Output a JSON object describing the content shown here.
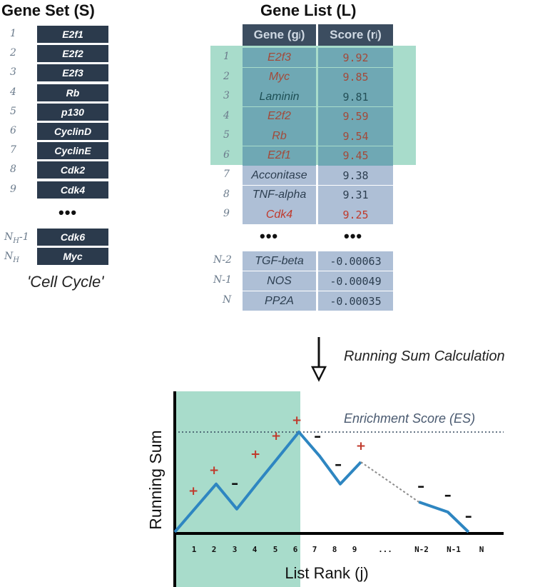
{
  "gene_set": {
    "title": "Gene Set (S)",
    "rows": [
      {
        "idx": "1",
        "gene": "E2f1"
      },
      {
        "idx": "2",
        "gene": "E2f2"
      },
      {
        "idx": "3",
        "gene": "E2f3"
      },
      {
        "idx": "4",
        "gene": "Rb"
      },
      {
        "idx": "5",
        "gene": "p130"
      },
      {
        "idx": "6",
        "gene": "CyclinD"
      },
      {
        "idx": "7",
        "gene": "CyclinE"
      },
      {
        "idx": "8",
        "gene": "Cdk2"
      },
      {
        "idx": "9",
        "gene": "Cdk4"
      }
    ],
    "ellipsis": "•••",
    "tail": [
      {
        "idx_main": "N",
        "idx_sub": "H",
        "idx_suffix": "-1",
        "gene": "Cdk6"
      },
      {
        "idx_main": "N",
        "idx_sub": "H",
        "idx_suffix": "",
        "gene": "Myc"
      }
    ],
    "caption": "'Cell Cycle'"
  },
  "gene_list": {
    "title": "Gene List (L)",
    "header_gene_main": "Gene (g",
    "header_gene_sub": "j",
    "header_gene_end": " )",
    "header_score_main": "Score (r",
    "header_score_sub": "j",
    "header_score_end": ")",
    "rows": [
      {
        "idx": "1",
        "gene": "E2f3",
        "score": "9.92",
        "in_set": true,
        "leading": true
      },
      {
        "idx": "2",
        "gene": "Myc",
        "score": "9.85",
        "in_set": true,
        "leading": true
      },
      {
        "idx": "3",
        "gene": "Laminin",
        "score": "9.81",
        "in_set": false,
        "leading": true
      },
      {
        "idx": "4",
        "gene": "E2f2",
        "score": "9.59",
        "in_set": true,
        "leading": true
      },
      {
        "idx": "5",
        "gene": "Rb",
        "score": "9.54",
        "in_set": true,
        "leading": true
      },
      {
        "idx": "6",
        "gene": "E2f1",
        "score": "9.45",
        "in_set": true,
        "leading": true
      },
      {
        "idx": "7",
        "gene": "Acconitase",
        "score": "9.38",
        "in_set": false,
        "leading": false
      },
      {
        "idx": "8",
        "gene": "TNF-alpha",
        "score": "9.31",
        "in_set": false,
        "leading": false
      },
      {
        "idx": "9",
        "gene": "Cdk4",
        "score": "9.25",
        "in_set": true,
        "leading": false
      }
    ],
    "ellipsis_gene": "•••",
    "ellipsis_score": "•••",
    "tail": [
      {
        "idx": "N-2",
        "gene": "TGF-beta",
        "score": "-0.00063"
      },
      {
        "idx": "N-1",
        "gene": "NOS",
        "score": "-0.00049"
      },
      {
        "idx": "N",
        "gene": "PP2A",
        "score": "-0.00035"
      }
    ]
  },
  "arrow_label": "Running Sum Calculation",
  "chart_data": {
    "type": "line",
    "ylabel": "Running Sum",
    "xlabel": "List Rank (j)",
    "es_label": "Enrichment Score (ES)",
    "x_ticks": [
      "1",
      "2",
      "3",
      "4",
      "5",
      "6",
      "7",
      "8",
      "9",
      "...",
      "N-2",
      "N-1",
      "N"
    ],
    "points": [
      {
        "x": 0,
        "y": 0
      },
      {
        "x": 2,
        "y": 0.48
      },
      {
        "x": 3,
        "y": 0.23
      },
      {
        "x": 4,
        "y": 0.49
      },
      {
        "x": 6,
        "y": 1.0
      },
      {
        "x": 7,
        "y": 0.76
      },
      {
        "x": 8,
        "y": 0.48
      },
      {
        "x": 9,
        "y": 0.7
      }
    ],
    "dashed_segment": [
      {
        "x": 9,
        "y": 0.7
      },
      {
        "x": 11.8,
        "y": 0.3
      }
    ],
    "tail_points": [
      {
        "x": 11.8,
        "y": 0.3
      },
      {
        "x": 13.2,
        "y": 0.2
      },
      {
        "x": 14.2,
        "y": 0.0
      }
    ],
    "es_value": 1.0,
    "leading_edge_end": 6,
    "marks": [
      {
        "sym": "+",
        "x": 0.9,
        "y": 0.37
      },
      {
        "sym": "+",
        "x": 1.9,
        "y": 0.58
      },
      {
        "sym": "–",
        "x": 2.9,
        "y": 0.44
      },
      {
        "sym": "+",
        "x": 3.9,
        "y": 0.74
      },
      {
        "sym": "+",
        "x": 4.9,
        "y": 0.92
      },
      {
        "sym": "+",
        "x": 5.9,
        "y": 1.08
      },
      {
        "sym": "–",
        "x": 6.9,
        "y": 0.91
      },
      {
        "sym": "–",
        "x": 7.9,
        "y": 0.63
      },
      {
        "sym": "+",
        "x": 9.0,
        "y": 0.82
      },
      {
        "sym": "–",
        "x": 11.9,
        "y": 0.41
      },
      {
        "sym": "–",
        "x": 13.2,
        "y": 0.32
      },
      {
        "sym": "–",
        "x": 14.2,
        "y": 0.11
      }
    ],
    "colors": {
      "line": "#2e86c1",
      "plus": "#c0392b",
      "shade": "#a8dccb",
      "dashed": "#8c8c8c"
    }
  }
}
